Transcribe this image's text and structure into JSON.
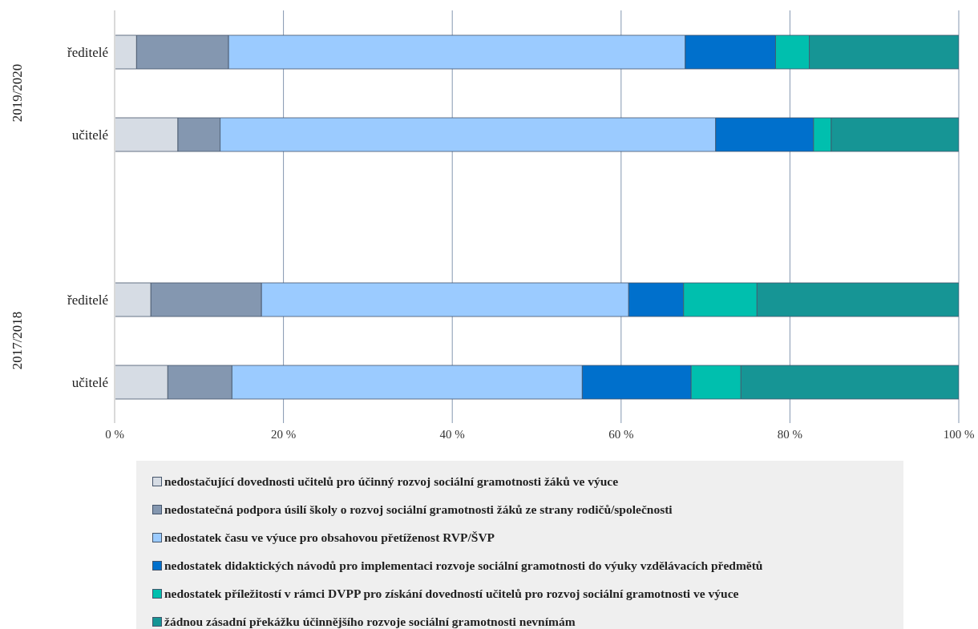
{
  "chart_data": {
    "type": "bar",
    "orientation": "horizontal",
    "stacked": true,
    "categories": [
      "ředitelé",
      "učitelé",
      null,
      "ředitelé",
      "učitelé"
    ],
    "annotations": [
      "2019/2020",
      "2017/2018"
    ],
    "series": [
      {
        "name": "nedostačující dovednosti učitelů pro účinný rozvoj sociální gramotnosti žáků ve výuce",
        "color": "#d6dce4",
        "values": [
          2.6,
          7.5,
          null,
          4.3,
          6.3
        ]
      },
      {
        "name": "nedostatečná podpora úsilí školy o rozvoj sociální gramotnosti žáků ze strany rodičů/společnosti",
        "color": "#8497b0",
        "values": [
          10.9,
          5.0,
          null,
          13.1,
          7.6
        ]
      },
      {
        "name": "nedostatek času ve výuce pro obsahovou přetíženost RVP/ŠVP",
        "color": "#9bcbff",
        "values": [
          54.1,
          58.7,
          null,
          43.5,
          41.5
        ]
      },
      {
        "name": "nedostatek didaktických návodů pro implementaci rozvoje sociální gramotnosti do výuky vzdělávacích předmětů",
        "color": "#0070cc",
        "values": [
          10.7,
          11.6,
          null,
          6.5,
          12.9
        ]
      },
      {
        "name": "nedostatek příležitostí v rámci DVPP pro získání dovedností učitelů pro rozvoj sociální gramotnosti ve výuce",
        "color": "#00bfae",
        "values": [
          4.0,
          2.1,
          null,
          8.7,
          5.9
        ]
      },
      {
        "name": "žádnou zásadní překážku účinnějšího rozvoje sociální gramotnosti nevnímám",
        "color": "#169595",
        "values": [
          17.7,
          15.1,
          null,
          23.9,
          25.8
        ]
      }
    ],
    "xlim": [
      0,
      100
    ],
    "xticks": [
      {
        "value": 0,
        "label": "0 %"
      },
      {
        "value": 20,
        "label": "20 %"
      },
      {
        "value": 40,
        "label": "40 %"
      },
      {
        "value": 60,
        "label": "60 %"
      },
      {
        "value": 80,
        "label": "80 %"
      },
      {
        "value": 100,
        "label": "100 %"
      }
    ],
    "grid": "x",
    "legend": "bottom"
  }
}
